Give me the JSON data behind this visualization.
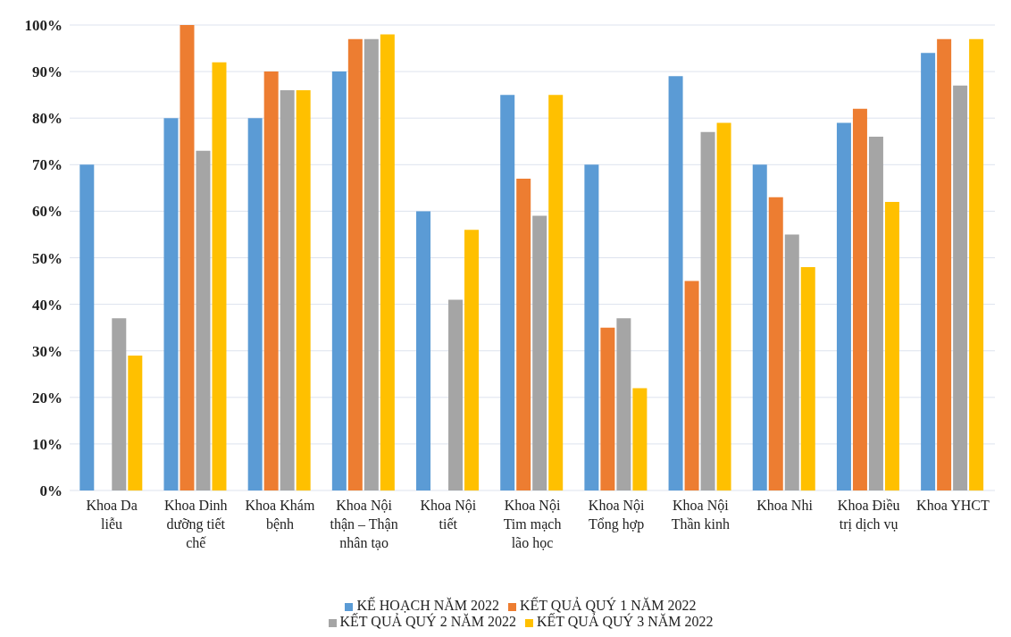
{
  "chart_data": {
    "type": "bar",
    "categories": [
      "Khoa Da liễu",
      "Khoa Dinh dưỡng tiết chế",
      "Khoa Khám bệnh",
      "Khoa Nội thận – Thận nhân tạo",
      "Khoa Nội tiết",
      "Khoa Nội Tim mạch lão học",
      "Khoa Nội Tổng hợp",
      "Khoa Nội Thần kinh",
      "Khoa Nhi",
      "Khoa Điều trị dịch vụ",
      "Khoa YHCT"
    ],
    "series": [
      {
        "name": "KẾ HOẠCH NĂM 2022",
        "color": "#5b9bd5",
        "values": [
          70,
          80,
          80,
          90,
          60,
          85,
          70,
          89,
          70,
          79,
          94
        ]
      },
      {
        "name": "KẾT QUẢ QUÝ 1 NĂM 2022",
        "color": "#ed7d31",
        "values": [
          null,
          100,
          90,
          97,
          0,
          67,
          35,
          45,
          63,
          82,
          97
        ]
      },
      {
        "name": "KẾT QUẢ QUÝ 2 NĂM 2022",
        "color": "#a5a5a5",
        "values": [
          37,
          73,
          86,
          97,
          41,
          59,
          37,
          77,
          55,
          76,
          87
        ]
      },
      {
        "name": "KẾT QUẢ QUÝ 3 NĂM 2022",
        "color": "#ffc000",
        "values": [
          29,
          92,
          86,
          98,
          56,
          85,
          22,
          79,
          48,
          62,
          97
        ]
      }
    ],
    "ylim": [
      0,
      100
    ],
    "yticks": [
      {
        "value": 0,
        "label": "0%"
      },
      {
        "value": 10,
        "label": "10%"
      },
      {
        "value": 20,
        "label": "20%"
      },
      {
        "value": 30,
        "label": "30%"
      },
      {
        "value": 40,
        "label": "40%"
      },
      {
        "value": 50,
        "label": "50%"
      },
      {
        "value": 60,
        "label": "60%"
      },
      {
        "value": 70,
        "label": "70%"
      },
      {
        "value": 80,
        "label": "80%"
      },
      {
        "value": 90,
        "label": "90%"
      },
      {
        "value": 100,
        "label": "100%"
      }
    ],
    "grid": "y",
    "legend": "bottom"
  }
}
